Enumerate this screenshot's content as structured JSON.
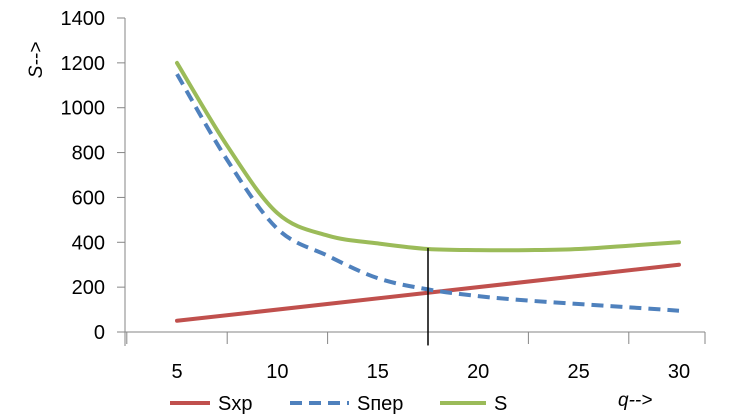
{
  "chart_data": {
    "type": "line",
    "title": "",
    "xlabel": "q-->",
    "ylabel": "S-->",
    "xlim": [
      5,
      30
    ],
    "ylim": [
      0,
      1400
    ],
    "x_ticks": [
      "5",
      "10",
      "15",
      "20",
      "25",
      "30"
    ],
    "y_ticks": [
      "0",
      "200",
      "400",
      "600",
      "800",
      "1000",
      "1200",
      "1400"
    ],
    "grid": false,
    "legend_position": "bottom",
    "series": [
      {
        "name": "Sхр",
        "color": "#c0504d",
        "style": "solid",
        "x": [
          5,
          30
        ],
        "y": [
          50,
          300
        ]
      },
      {
        "name": "Sпер",
        "color": "#4f81bd",
        "style": "dashed",
        "x": [
          5,
          7.5,
          10,
          12.5,
          15,
          17.5,
          20,
          22.5,
          25,
          27.5,
          30
        ],
        "y": [
          1150,
          767,
          460,
          340,
          240,
          190,
          160,
          140,
          125,
          110,
          95
        ]
      },
      {
        "name": "S",
        "color": "#9bbb59",
        "style": "solid",
        "x": [
          5,
          7.5,
          10,
          12.5,
          15,
          17.5,
          20,
          22.5,
          25,
          27.5,
          30
        ],
        "y": [
          1200,
          830,
          530,
          430,
          395,
          370,
          365,
          365,
          370,
          385,
          400
        ]
      }
    ],
    "annotations": [
      {
        "type": "vertical-line",
        "x": 17.5,
        "y_from": -60,
        "y_to": 375,
        "color": "#000000"
      }
    ]
  }
}
